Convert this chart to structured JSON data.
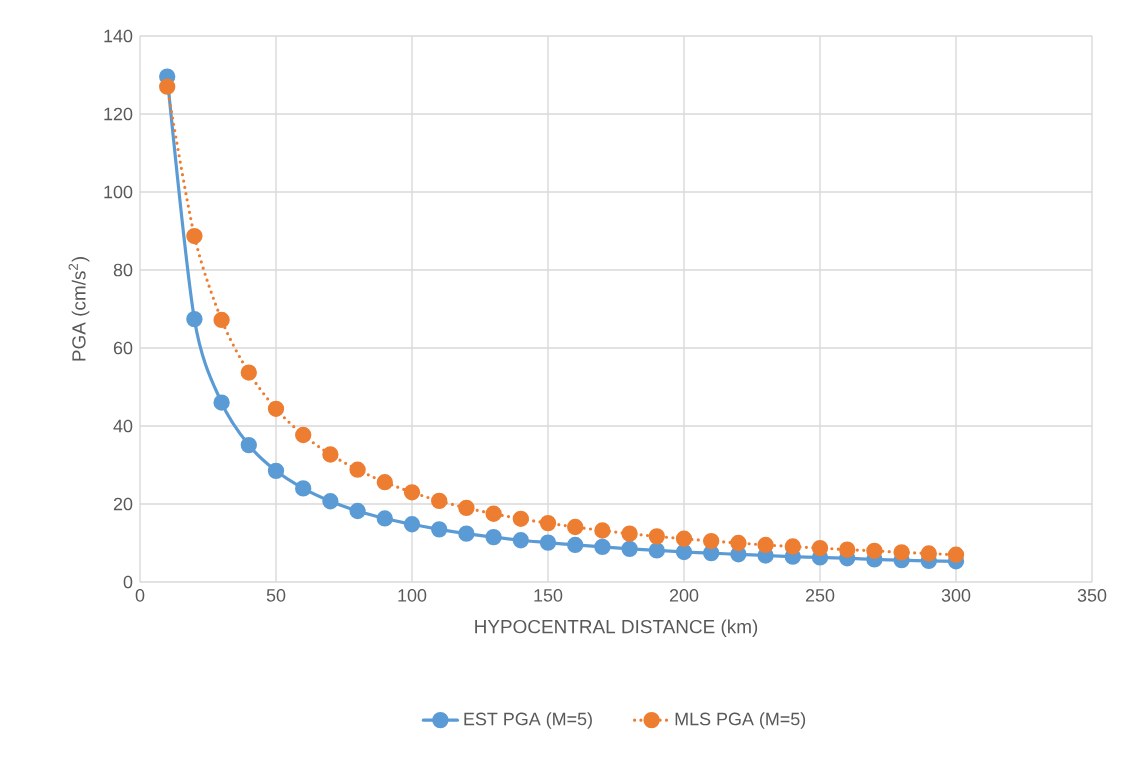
{
  "chart_data": {
    "type": "line",
    "xlabel": "HYPOCENTRAL DISTANCE (km)",
    "ylabel": "PGA (cm/s$^{2}$)",
    "x": [
      10,
      20,
      30,
      40,
      50,
      60,
      70,
      80,
      90,
      100,
      110,
      120,
      130,
      140,
      150,
      160,
      170,
      180,
      190,
      200,
      210,
      220,
      230,
      240,
      250,
      260,
      270,
      280,
      290,
      300
    ],
    "series": [
      {
        "name": "EST PGA (M=5)",
        "color": "#5b9bd5",
        "marker": "circle",
        "line_style": "solid",
        "values": [
          129.6,
          67.4,
          46,
          35.1,
          28.5,
          24,
          20.7,
          18.2,
          16.3,
          14.8,
          13.5,
          12.4,
          11.5,
          10.7,
          10.1,
          9.5,
          9.0,
          8.5,
          8.1,
          7.7,
          7.4,
          7.1,
          6.8,
          6.5,
          6.3,
          6.1,
          5.8,
          5.6,
          5.4,
          5.3
        ]
      },
      {
        "name": "MLS PGA (M=5)",
        "color": "#ed7d31",
        "marker": "circle",
        "line_style": "dotted",
        "values": [
          127,
          88.7,
          67.2,
          53.7,
          44.4,
          37.7,
          32.7,
          28.8,
          25.6,
          23,
          20.8,
          19,
          17.5,
          16.2,
          15.1,
          14.1,
          13.2,
          12.4,
          11.7,
          11.1,
          10.5,
          10,
          9.5,
          9.1,
          8.7,
          8.3,
          8.0,
          7.6,
          7.3,
          7.0
        ]
      }
    ],
    "xlim": [
      0,
      350
    ],
    "ylim": [
      0,
      140
    ],
    "xticks": [
      0,
      50,
      100,
      150,
      200,
      250,
      300,
      350
    ],
    "yticks": [
      0,
      20,
      40,
      60,
      80,
      100,
      120,
      140
    ],
    "grid": true,
    "legend": "bottom"
  }
}
